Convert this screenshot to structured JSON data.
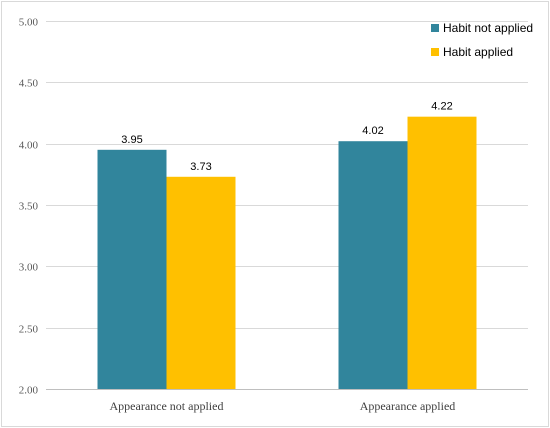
{
  "chart_data": {
    "type": "bar",
    "title": "",
    "xlabel": "",
    "ylabel": "",
    "categories": [
      "Appearance not applied",
      "Appearance applied"
    ],
    "series": [
      {
        "name": "Habit not applied",
        "values": [
          3.95,
          4.02
        ],
        "color": "#31859c"
      },
      {
        "name": "Habit applied",
        "values": [
          3.73,
          4.22
        ],
        "color": "#ffc000"
      }
    ],
    "ylim": [
      2.0,
      5.0
    ],
    "yticks": [
      "2.00",
      "2.50",
      "3.00",
      "3.50",
      "4.00",
      "4.50",
      "5.00"
    ],
    "grid": true,
    "legend_position": "top-right",
    "data_labels": true
  }
}
